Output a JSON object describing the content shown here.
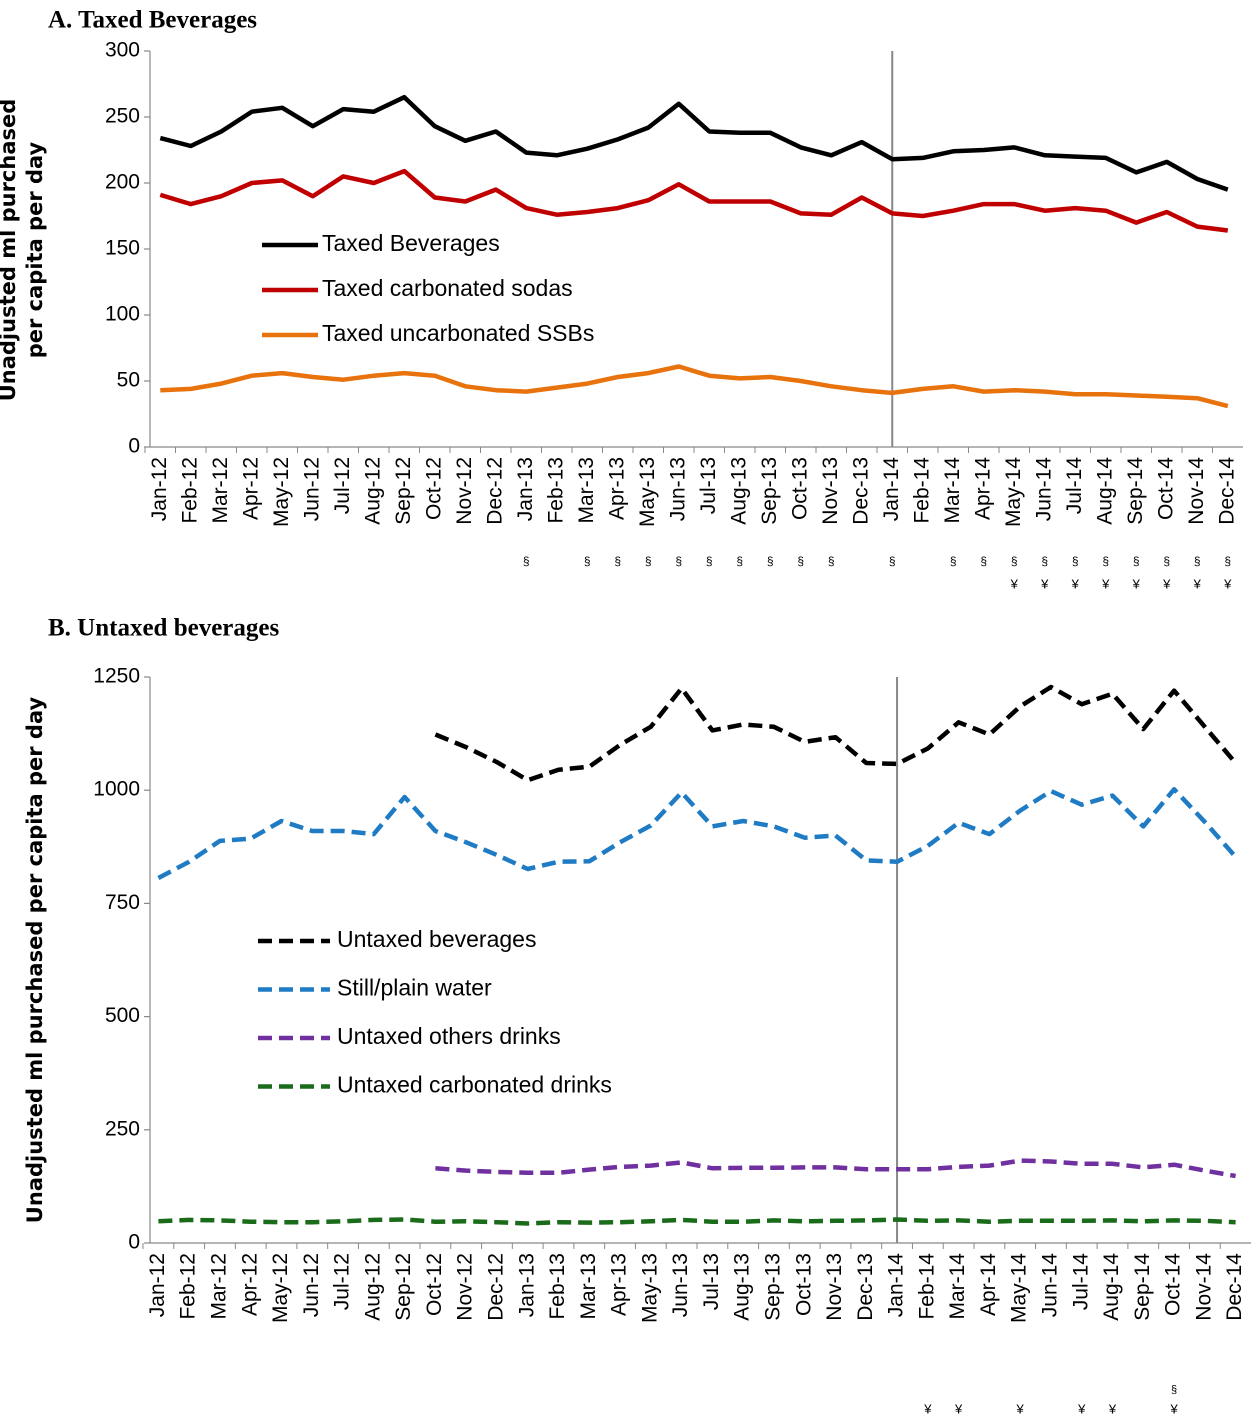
{
  "chart_data": [
    {
      "type": "line",
      "title": "A.  Taxed Beverages",
      "y_label": "Unadjusted ml purchased per capita per day",
      "categories": [
        "Jan-12",
        "Feb-12",
        "Mar-12",
        "Apr-12",
        "May-12",
        "Jun-12",
        "Jul-12",
        "Aug-12",
        "Sep-12",
        "Oct-12",
        "Nov-12",
        "Dec-12",
        "Jan-13",
        "Feb-13",
        "Mar-13",
        "Apr-13",
        "May-13",
        "Jun-13",
        "Jul-13",
        "Aug-13",
        "Sep-13",
        "Oct-13",
        "Nov-13",
        "Dec-13",
        "Jan-14",
        "Feb-14",
        "Mar-14",
        "Apr-14",
        "May-14",
        "Jun-14",
        "Jul-14",
        "Aug-14",
        "Sep-14",
        "Oct-14",
        "Nov-14",
        "Dec-14"
      ],
      "series": [
        {
          "name": "Taxed Beverages",
          "color": "#000000",
          "values": [
            234,
            228,
            239,
            254,
            257,
            243,
            256,
            254,
            265,
            243,
            232,
            239,
            223,
            221,
            226,
            233,
            242,
            260,
            239,
            238,
            238,
            227,
            221,
            231,
            218,
            219,
            224,
            225,
            227,
            221,
            220,
            219,
            208,
            216,
            203,
            195
          ]
        },
        {
          "name": "Taxed carbonated sodas",
          "color": "#c00000",
          "values": [
            191,
            184,
            190,
            200,
            202,
            190,
            205,
            200,
            209,
            189,
            186,
            195,
            181,
            176,
            178,
            181,
            187,
            199,
            186,
            186,
            186,
            177,
            176,
            189,
            177,
            175,
            179,
            184,
            184,
            179,
            181,
            179,
            170,
            178,
            167,
            164
          ]
        },
        {
          "name": "Taxed uncarbonated SSBs",
          "color": "#e8720c",
          "values": [
            43,
            44,
            48,
            54,
            56,
            53,
            51,
            54,
            56,
            54,
            46,
            43,
            42,
            45,
            48,
            53,
            56,
            61,
            54,
            52,
            53,
            50,
            46,
            43,
            41,
            44,
            46,
            42,
            43,
            42,
            40,
            40,
            39,
            38,
            37,
            31
          ]
        }
      ],
      "dashed": false,
      "ylim": [
        0,
        300
      ],
      "yticks": [
        0,
        50,
        100,
        150,
        200,
        250,
        300
      ],
      "vline": "Jan-14",
      "footnotes": [
        [
          null,
          null,
          null,
          null,
          null,
          null,
          null,
          null,
          null,
          null,
          null,
          null,
          "§",
          null,
          "§",
          "§",
          "§",
          "§",
          "§",
          "§",
          "§",
          "§",
          "§",
          null,
          "§",
          null,
          "§",
          "§",
          "§",
          "§",
          "§",
          "§",
          "§",
          "§",
          "§",
          "§"
        ],
        [
          null,
          null,
          null,
          null,
          null,
          null,
          null,
          null,
          null,
          null,
          null,
          null,
          null,
          null,
          null,
          null,
          null,
          null,
          null,
          null,
          null,
          null,
          null,
          null,
          null,
          null,
          null,
          null,
          "¥",
          "¥",
          "¥",
          "¥",
          "¥",
          "¥",
          "¥",
          "¥"
        ]
      ]
    },
    {
      "type": "line",
      "title": "B.  Untaxed beverages",
      "y_label": "Unadjusted ml purchased per capita per day",
      "categories": [
        "Jan-12",
        "Feb-12",
        "Mar-12",
        "Apr-12",
        "May-12",
        "Jun-12",
        "Jul-12",
        "Aug-12",
        "Sep-12",
        "Oct-12",
        "Nov-12",
        "Dec-12",
        "Jan-13",
        "Feb-13",
        "Mar-13",
        "Apr-13",
        "May-13",
        "Jun-13",
        "Jul-13",
        "Aug-13",
        "Sep-13",
        "Oct-13",
        "Nov-13",
        "Dec-13",
        "Jan-14",
        "Feb-14",
        "Mar-14",
        "Apr-14",
        "May-14",
        "Jun-14",
        "Jul-14",
        "Aug-14",
        "Sep-14",
        "Oct-14",
        "Nov-14",
        "Dec-14"
      ],
      "series": [
        {
          "name": "Untaxed beverages",
          "color": "#000000",
          "values": [
            null,
            null,
            null,
            null,
            null,
            null,
            null,
            null,
            null,
            1123,
            1095,
            1062,
            1022,
            1045,
            1052,
            1100,
            1140,
            1225,
            1132,
            1145,
            1140,
            1107,
            1117,
            1060,
            1058,
            1092,
            1150,
            1123,
            1185,
            1228,
            1190,
            1213,
            1135,
            1220,
            1140,
            1060
          ]
        },
        {
          "name": "Still/plain water",
          "color": "#1f7cc4",
          "values": [
            806,
            842,
            888,
            893,
            932,
            910,
            910,
            903,
            985,
            910,
            885,
            857,
            826,
            842,
            843,
            885,
            922,
            995,
            920,
            932,
            920,
            895,
            900,
            845,
            842,
            877,
            928,
            903,
            955,
            998,
            968,
            988,
            920,
            1002,
            930,
            853
          ]
        },
        {
          "name": "Untaxed others drinks",
          "color": "#7030a0",
          "values": [
            null,
            null,
            null,
            null,
            null,
            null,
            null,
            null,
            null,
            165,
            160,
            157,
            155,
            155,
            162,
            168,
            171,
            178,
            165,
            166,
            166,
            167,
            167,
            163,
            163,
            163,
            168,
            171,
            182,
            180,
            175,
            175,
            167,
            173,
            160,
            148
          ]
        },
        {
          "name": "Untaxed carbonated drinks",
          "color": "#1a6b1a",
          "values": [
            48,
            51,
            50,
            47,
            46,
            46,
            48,
            51,
            52,
            47,
            48,
            46,
            43,
            46,
            45,
            46,
            48,
            51,
            47,
            47,
            50,
            48,
            49,
            50,
            52,
            49,
            50,
            47,
            49,
            49,
            49,
            50,
            48,
            50,
            49,
            46
          ]
        }
      ],
      "dashed": true,
      "ylim": [
        0,
        1250
      ],
      "yticks": [
        0,
        250,
        500,
        750,
        1000,
        1250
      ],
      "vline": "Jan-14",
      "footnotes": [
        [
          null,
          null,
          null,
          null,
          null,
          null,
          null,
          null,
          null,
          null,
          null,
          null,
          null,
          null,
          null,
          null,
          null,
          null,
          null,
          null,
          null,
          null,
          null,
          null,
          null,
          null,
          null,
          null,
          null,
          null,
          null,
          null,
          null,
          "§",
          null,
          null
        ],
        [
          null,
          null,
          null,
          null,
          null,
          null,
          null,
          null,
          null,
          null,
          null,
          null,
          null,
          null,
          null,
          null,
          null,
          null,
          null,
          null,
          null,
          null,
          null,
          null,
          null,
          "¥",
          "¥",
          null,
          "¥",
          null,
          "¥",
          "¥",
          null,
          "¥",
          null,
          null
        ]
      ]
    }
  ]
}
